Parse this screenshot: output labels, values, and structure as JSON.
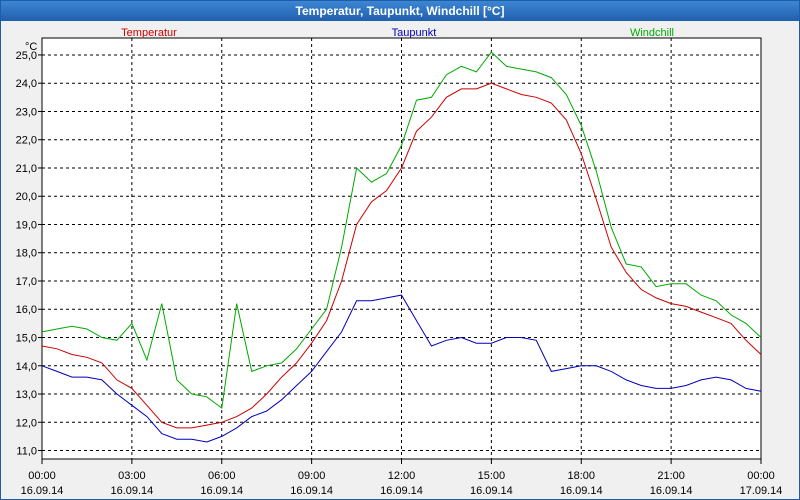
{
  "window": {
    "title": "Temperatur, Taupunkt, Windchill [°C]"
  },
  "chart_data": {
    "type": "line",
    "title": "Temperatur, Taupunkt, Windchill [°C]",
    "ylabel": "°C",
    "ylim": [
      10.7,
      25.6
    ],
    "y_ticks": [
      "11,0",
      "12,0",
      "13,0",
      "14,0",
      "15,0",
      "16,0",
      "17,0",
      "18,0",
      "19,0",
      "20,0",
      "21,0",
      "22,0",
      "23,0",
      "24,0",
      "25,0"
    ],
    "xlim": [
      0,
      24
    ],
    "x_ticks": [
      {
        "time": "00:00",
        "date": "16.09.14"
      },
      {
        "time": "03:00",
        "date": "16.09.14"
      },
      {
        "time": "06:00",
        "date": "16.09.14"
      },
      {
        "time": "09:00",
        "date": "16.09.14"
      },
      {
        "time": "12:00",
        "date": "16.09.14"
      },
      {
        "time": "15:00",
        "date": "16.09.14"
      },
      {
        "time": "18:00",
        "date": "16.09.14"
      },
      {
        "time": "21:00",
        "date": "16.09.14"
      },
      {
        "time": "00:00",
        "date": "17.09.14"
      }
    ],
    "grid": true,
    "series": [
      {
        "name": "Temperatur",
        "color": "#cc0000",
        "points": [
          [
            0,
            14.7
          ],
          [
            0.5,
            14.6
          ],
          [
            1,
            14.4
          ],
          [
            1.5,
            14.3
          ],
          [
            2,
            14.1
          ],
          [
            2.5,
            13.5
          ],
          [
            3,
            13.2
          ],
          [
            3.5,
            12.6
          ],
          [
            4,
            12.0
          ],
          [
            4.5,
            11.8
          ],
          [
            5,
            11.8
          ],
          [
            5.5,
            11.9
          ],
          [
            6,
            12.0
          ],
          [
            6.5,
            12.2
          ],
          [
            7,
            12.5
          ],
          [
            7.5,
            13.0
          ],
          [
            8,
            13.6
          ],
          [
            8.5,
            14.1
          ],
          [
            9,
            14.8
          ],
          [
            9.5,
            15.6
          ],
          [
            10,
            17.0
          ],
          [
            10.5,
            19.0
          ],
          [
            11,
            19.8
          ],
          [
            11.5,
            20.2
          ],
          [
            12,
            21.0
          ],
          [
            12.5,
            22.3
          ],
          [
            13,
            22.8
          ],
          [
            13.5,
            23.5
          ],
          [
            14,
            23.8
          ],
          [
            14.5,
            23.8
          ],
          [
            15,
            24.0
          ],
          [
            15.5,
            23.8
          ],
          [
            16,
            23.6
          ],
          [
            16.5,
            23.5
          ],
          [
            17,
            23.3
          ],
          [
            17.5,
            22.7
          ],
          [
            18,
            21.5
          ],
          [
            18.5,
            19.9
          ],
          [
            19,
            18.2
          ],
          [
            19.5,
            17.3
          ],
          [
            20,
            16.7
          ],
          [
            20.5,
            16.4
          ],
          [
            21,
            16.2
          ],
          [
            21.5,
            16.1
          ],
          [
            22,
            15.9
          ],
          [
            22.5,
            15.7
          ],
          [
            23,
            15.5
          ],
          [
            23.5,
            14.9
          ],
          [
            24,
            14.4
          ]
        ]
      },
      {
        "name": "Taupunkt",
        "color": "#0000bb",
        "points": [
          [
            0,
            14.0
          ],
          [
            0.5,
            13.8
          ],
          [
            1,
            13.6
          ],
          [
            1.5,
            13.6
          ],
          [
            2,
            13.5
          ],
          [
            2.5,
            13.0
          ],
          [
            3,
            12.6
          ],
          [
            3.5,
            12.2
          ],
          [
            4,
            11.6
          ],
          [
            4.5,
            11.4
          ],
          [
            5,
            11.4
          ],
          [
            5.5,
            11.3
          ],
          [
            6,
            11.5
          ],
          [
            6.5,
            11.8
          ],
          [
            7,
            12.2
          ],
          [
            7.5,
            12.4
          ],
          [
            8,
            12.8
          ],
          [
            8.5,
            13.3
          ],
          [
            9,
            13.8
          ],
          [
            9.5,
            14.5
          ],
          [
            10,
            15.2
          ],
          [
            10.5,
            16.3
          ],
          [
            11,
            16.3
          ],
          [
            11.5,
            16.4
          ],
          [
            12,
            16.5
          ],
          [
            12.5,
            15.6
          ],
          [
            13,
            14.7
          ],
          [
            13.5,
            14.9
          ],
          [
            14,
            15.0
          ],
          [
            14.5,
            14.8
          ],
          [
            15,
            14.8
          ],
          [
            15.5,
            15.0
          ],
          [
            16,
            15.0
          ],
          [
            16.5,
            14.9
          ],
          [
            17,
            13.8
          ],
          [
            17.5,
            13.9
          ],
          [
            18,
            14.0
          ],
          [
            18.5,
            14.0
          ],
          [
            19,
            13.8
          ],
          [
            19.5,
            13.5
          ],
          [
            20,
            13.3
          ],
          [
            20.5,
            13.2
          ],
          [
            21,
            13.2
          ],
          [
            21.5,
            13.3
          ],
          [
            22,
            13.5
          ],
          [
            22.5,
            13.6
          ],
          [
            23,
            13.5
          ],
          [
            23.5,
            13.2
          ],
          [
            24,
            13.1
          ]
        ]
      },
      {
        "name": "Windchill",
        "color": "#00aa00",
        "points": [
          [
            0,
            15.2
          ],
          [
            0.5,
            15.3
          ],
          [
            1,
            15.4
          ],
          [
            1.5,
            15.3
          ],
          [
            2,
            15.0
          ],
          [
            2.5,
            14.9
          ],
          [
            3,
            15.5
          ],
          [
            3.5,
            14.2
          ],
          [
            4,
            16.2
          ],
          [
            4.5,
            13.5
          ],
          [
            5,
            13.0
          ],
          [
            5.5,
            12.9
          ],
          [
            6,
            12.5
          ],
          [
            6.5,
            16.2
          ],
          [
            7,
            13.8
          ],
          [
            7.5,
            14.0
          ],
          [
            8,
            14.1
          ],
          [
            8.5,
            14.6
          ],
          [
            9,
            15.3
          ],
          [
            9.5,
            16.0
          ],
          [
            10,
            18.2
          ],
          [
            10.5,
            21.0
          ],
          [
            11,
            20.5
          ],
          [
            11.5,
            20.8
          ],
          [
            12,
            21.8
          ],
          [
            12.5,
            23.4
          ],
          [
            13,
            23.5
          ],
          [
            13.5,
            24.3
          ],
          [
            14,
            24.6
          ],
          [
            14.5,
            24.4
          ],
          [
            15,
            25.1
          ],
          [
            15.5,
            24.6
          ],
          [
            16,
            24.5
          ],
          [
            16.5,
            24.4
          ],
          [
            17,
            24.2
          ],
          [
            17.5,
            23.6
          ],
          [
            18,
            22.5
          ],
          [
            18.5,
            20.9
          ],
          [
            19,
            18.9
          ],
          [
            19.5,
            17.6
          ],
          [
            20,
            17.5
          ],
          [
            20.5,
            16.8
          ],
          [
            21,
            16.9
          ],
          [
            21.5,
            16.9
          ],
          [
            22,
            16.5
          ],
          [
            22.5,
            16.3
          ],
          [
            23,
            15.8
          ],
          [
            23.5,
            15.5
          ],
          [
            24,
            15.0
          ]
        ]
      }
    ]
  }
}
